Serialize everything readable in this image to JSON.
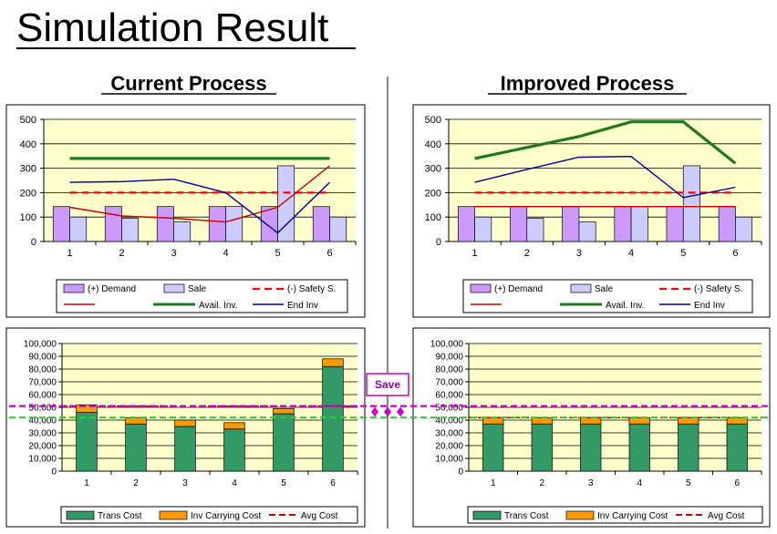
{
  "page": {
    "title": "Simulation Result",
    "left_heading": "Current Process",
    "right_heading": "Improved Process",
    "save_label": "Save",
    "colors": {
      "plot_bg": "#ffffcc",
      "demand": "#cc99ff",
      "sale": "#ccccff",
      "safety": "#ff0000",
      "red_line": "#cc0000",
      "avail": "#1f7a1f",
      "end_inv": "#000099",
      "trans": "#339966",
      "inv_carry": "#ff9900",
      "avg_cost": "#cc0000",
      "magenta_dash": "#cc00cc",
      "green_dash": "#33cc33"
    }
  },
  "chart_data": [
    {
      "id": "current-inventory",
      "type": "bar",
      "categories": [
        "1",
        "2",
        "3",
        "4",
        "5",
        "6"
      ],
      "ylim": [
        0,
        500
      ],
      "yticks": [
        "0",
        "100",
        "200",
        "300",
        "400",
        "500"
      ],
      "bars": [
        {
          "name": "(+) Demand",
          "values": [
            143,
            143,
            143,
            143,
            143,
            143
          ]
        },
        {
          "name": "Sale",
          "values": [
            100,
            95,
            80,
            143,
            310,
            100
          ]
        }
      ],
      "lines": [
        {
          "name": "(-) Safety S.",
          "style": "dashed",
          "values": [
            200,
            200,
            200,
            200,
            200,
            200
          ]
        },
        {
          "name": "",
          "style": "thin-red",
          "values": [
            140,
            105,
            95,
            80,
            140,
            310
          ]
        },
        {
          "name": "Avail. Inv.",
          "style": "thick-green",
          "values": [
            340,
            340,
            340,
            340,
            340,
            340
          ]
        },
        {
          "name": "End Inv",
          "style": "thin-blue",
          "values": [
            242,
            245,
            255,
            200,
            35,
            242
          ]
        }
      ]
    },
    {
      "id": "improved-inventory",
      "type": "bar",
      "categories": [
        "1",
        "2",
        "3",
        "4",
        "5",
        "6"
      ],
      "ylim": [
        0,
        500
      ],
      "yticks": [
        "0",
        "100",
        "200",
        "300",
        "400",
        "500"
      ],
      "bars": [
        {
          "name": "(+) Demand",
          "values": [
            143,
            143,
            143,
            143,
            143,
            143
          ]
        },
        {
          "name": "Sale",
          "values": [
            100,
            95,
            80,
            143,
            310,
            100
          ]
        }
      ],
      "lines": [
        {
          "name": "(-) Safety S.",
          "style": "dashed",
          "values": [
            200,
            200,
            200,
            200,
            200,
            200
          ]
        },
        {
          "name": "",
          "style": "thin-red",
          "values": [
            143,
            143,
            143,
            143,
            143,
            143
          ]
        },
        {
          "name": "Avail. Inv.",
          "style": "thick-green",
          "values": [
            340,
            385,
            430,
            490,
            490,
            320
          ]
        },
        {
          "name": "End Inv",
          "style": "thin-blue",
          "values": [
            242,
            295,
            345,
            348,
            180,
            222
          ]
        }
      ]
    },
    {
      "id": "current-cost",
      "type": "bar",
      "stacked": true,
      "categories": [
        "1",
        "2",
        "3",
        "4",
        "5",
        "6"
      ],
      "ylim": [
        0,
        100000
      ],
      "yticks": [
        "0",
        "10,000",
        "20,000",
        "30,000",
        "40,000",
        "50,000",
        "60,000",
        "70,000",
        "80,000",
        "90,000",
        "100,000"
      ],
      "series": [
        {
          "name": "Trans Cost",
          "values": [
            46000,
            37000,
            35000,
            33000,
            45000,
            82000
          ]
        },
        {
          "name": "Inv Carrying Cost",
          "values": [
            6000,
            5000,
            5000,
            5000,
            4000,
            6000
          ]
        }
      ],
      "avg": {
        "name": "Avg Cost",
        "value": 51000
      }
    },
    {
      "id": "improved-cost",
      "type": "bar",
      "stacked": true,
      "categories": [
        "1",
        "2",
        "3",
        "4",
        "5",
        "6"
      ],
      "ylim": [
        0,
        100000
      ],
      "yticks": [
        "0",
        "10,000",
        "20,000",
        "30,000",
        "40,000",
        "50,000",
        "60,000",
        "70,000",
        "80,000",
        "90,000",
        "100,000"
      ],
      "series": [
        {
          "name": "Trans Cost",
          "values": [
            37000,
            37000,
            37000,
            37000,
            37000,
            37000
          ]
        },
        {
          "name": "Inv Carrying Cost",
          "values": [
            5000,
            5000,
            5000,
            5000,
            5000,
            5000
          ]
        }
      ],
      "avg": {
        "name": "Avg Cost",
        "value": 42000
      }
    }
  ]
}
